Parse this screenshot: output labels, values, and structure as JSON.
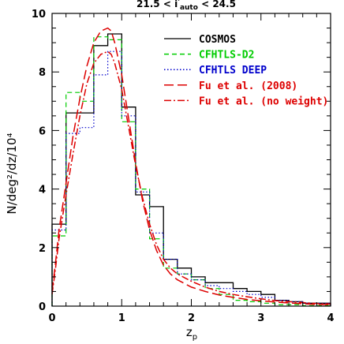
{
  "chart_data": {
    "type": "line",
    "title": "21.5 < i'auto < 24.5",
    "title_parts": {
      "pre": "21.5 < i",
      "sup": "'",
      "sub": "auto",
      "post": " < 24.5"
    },
    "xlabel": {
      "base": "z",
      "sub": "p"
    },
    "ylabel": "N/deg²/dz/10⁴",
    "xlim": [
      0,
      4
    ],
    "ylim": [
      0,
      10
    ],
    "xticks": [
      0,
      1,
      2,
      3,
      4
    ],
    "yticks": [
      0,
      2,
      4,
      6,
      8,
      10
    ],
    "legend_position": "top-right",
    "series": [
      {
        "name": "COSMOS",
        "style": "histogram",
        "color": "#000000",
        "dash": "",
        "bins": [
          0,
          0.2,
          0.4,
          0.6,
          0.8,
          1.0,
          1.2,
          1.4,
          1.6,
          1.8,
          2.0,
          2.2,
          2.4,
          2.6,
          2.8,
          3.0,
          3.2,
          3.4,
          3.6,
          3.8,
          4.0
        ],
        "values": [
          2.8,
          6.6,
          6.6,
          8.9,
          9.3,
          6.8,
          3.8,
          3.4,
          1.6,
          1.3,
          1.0,
          0.8,
          0.8,
          0.6,
          0.5,
          0.4,
          0.2,
          0.15,
          0.1,
          0.1
        ]
      },
      {
        "name": "CFHTLS-D2",
        "style": "histogram",
        "color": "#00cc00",
        "dash": "6,4",
        "bins": [
          0,
          0.2,
          0.4,
          0.6,
          0.8,
          1.0,
          1.2,
          1.4,
          1.6,
          1.8,
          2.0,
          2.2,
          2.4,
          2.6,
          2.8,
          3.0,
          3.2,
          3.4,
          3.6,
          3.8,
          4.0
        ],
        "values": [
          2.4,
          7.3,
          7.0,
          9.2,
          9.1,
          6.3,
          4.0,
          2.3,
          1.3,
          1.1,
          0.9,
          0.6,
          0.4,
          0.2,
          0.15,
          0.1,
          0.05,
          0.05,
          0.02,
          0.02
        ]
      },
      {
        "name": "CFHTLS DEEP",
        "style": "histogram",
        "color": "#0000cc",
        "dash": "1.5,2.5",
        "bins": [
          0,
          0.2,
          0.4,
          0.6,
          0.8,
          1.0,
          1.2,
          1.4,
          1.6,
          1.8,
          2.0,
          2.2,
          2.4,
          2.6,
          2.8,
          3.0,
          3.2,
          3.4,
          3.6,
          3.8,
          4.0
        ],
        "values": [
          2.6,
          5.9,
          6.1,
          7.9,
          8.7,
          6.5,
          3.9,
          2.5,
          1.6,
          1.1,
          0.9,
          0.7,
          0.6,
          0.5,
          0.4,
          0.3,
          0.2,
          0.15,
          0.1,
          0.1
        ]
      },
      {
        "name": "Fu et al. (2008)",
        "style": "curve",
        "color": "#dd0000",
        "dash": "12,5",
        "x": [
          0,
          0.05,
          0.1,
          0.2,
          0.3,
          0.4,
          0.5,
          0.6,
          0.7,
          0.8,
          0.85,
          0.9,
          1.0,
          1.1,
          1.2,
          1.3,
          1.4,
          1.5,
          1.6,
          1.7,
          1.8,
          2.0,
          2.2,
          2.4,
          2.6,
          2.8,
          3.0,
          3.2,
          3.4,
          3.6,
          3.8,
          4.0
        ],
        "y": [
          0.5,
          1.5,
          2.6,
          4.2,
          5.8,
          7.1,
          8.2,
          9.0,
          9.4,
          9.5,
          9.4,
          9.0,
          7.9,
          6.4,
          4.9,
          3.6,
          2.6,
          1.9,
          1.4,
          1.1,
          0.9,
          0.65,
          0.5,
          0.38,
          0.3,
          0.23,
          0.18,
          0.14,
          0.11,
          0.08,
          0.06,
          0.05
        ]
      },
      {
        "name": "Fu et al. (no weight)",
        "style": "curve",
        "color": "#dd0000",
        "dash": "9,3,2,3",
        "x": [
          0,
          0.05,
          0.1,
          0.2,
          0.3,
          0.4,
          0.5,
          0.6,
          0.7,
          0.8,
          0.85,
          0.9,
          1.0,
          1.1,
          1.2,
          1.3,
          1.4,
          1.5,
          1.6,
          1.7,
          1.8,
          2.0,
          2.2,
          2.4,
          2.6,
          2.8,
          3.0,
          3.2,
          3.4,
          3.6,
          3.8,
          4.0
        ],
        "y": [
          0.4,
          1.3,
          2.3,
          3.8,
          5.2,
          6.5,
          7.6,
          8.3,
          8.6,
          8.7,
          8.6,
          8.3,
          7.4,
          6.1,
          4.8,
          3.7,
          2.8,
          2.1,
          1.6,
          1.3,
          1.1,
          0.85,
          0.65,
          0.5,
          0.4,
          0.32,
          0.25,
          0.19,
          0.15,
          0.12,
          0.09,
          0.07
        ]
      }
    ]
  }
}
